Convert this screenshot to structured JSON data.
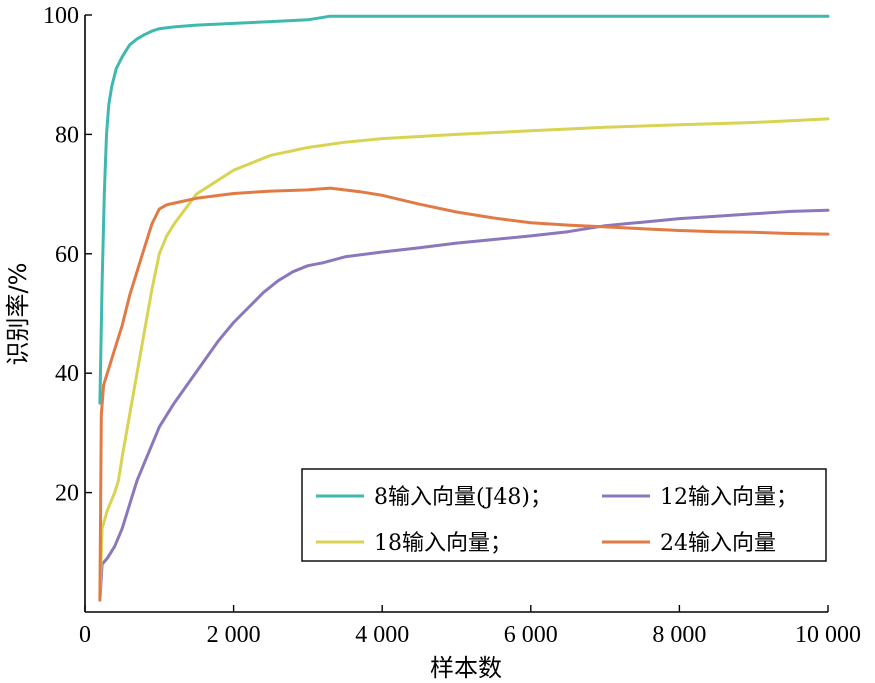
{
  "chart_data": {
    "type": "line",
    "title": "",
    "xlabel": "样本数",
    "ylabel": "识别率/%",
    "xlim": [
      0,
      10000
    ],
    "ylim": [
      0,
      100
    ],
    "xticks": [
      0,
      2000,
      4000,
      6000,
      8000,
      10000
    ],
    "xtick_labels": [
      "0",
      "2 000",
      "4 000",
      "6 000",
      "8 000",
      "10 000"
    ],
    "yticks": [
      20,
      40,
      60,
      80,
      100
    ],
    "ytick_labels": [
      "20",
      "40",
      "60",
      "80",
      "100"
    ],
    "grid": false,
    "legend_position": "bottom-right",
    "series": [
      {
        "name": "8输入向量(J48)；",
        "color": "#3fb8b0",
        "x": [
          200,
          230,
          260,
          290,
          320,
          360,
          420,
          500,
          600,
          700,
          800,
          900,
          1000,
          1200,
          1500,
          2000,
          2500,
          3000,
          3300,
          4000,
          5000,
          6000,
          7000,
          8000,
          9000,
          10000
        ],
        "y": [
          35,
          55,
          70,
          80,
          85,
          88,
          91,
          93,
          95,
          96,
          96.7,
          97.3,
          97.7,
          98,
          98.3,
          98.6,
          98.9,
          99.2,
          99.8,
          99.8,
          99.8,
          99.8,
          99.8,
          99.8,
          99.8,
          99.8
        ]
      },
      {
        "name": "12输入向量；",
        "color": "#8b77bb",
        "x": [
          200,
          230,
          300,
          400,
          500,
          600,
          700,
          800,
          900,
          1000,
          1200,
          1400,
          1600,
          1800,
          2000,
          2200,
          2400,
          2600,
          2800,
          3000,
          3200,
          3500,
          4000,
          4500,
          5000,
          5500,
          6000,
          6500,
          7000,
          7500,
          8000,
          8500,
          9000,
          9500,
          10000
        ],
        "y": [
          2,
          8,
          9,
          11,
          14,
          18,
          22,
          25,
          28,
          31,
          35,
          38.5,
          42,
          45.5,
          48.5,
          51,
          53.5,
          55.5,
          57,
          58,
          58.5,
          59.5,
          60.3,
          61,
          61.8,
          62.4,
          63,
          63.7,
          64.7,
          65.3,
          65.9,
          66.3,
          66.7,
          67.1,
          67.3
        ]
      },
      {
        "name": "18输入向量；",
        "color": "#d9d353",
        "x": [
          200,
          230,
          300,
          400,
          450,
          500,
          600,
          700,
          800,
          900,
          1000,
          1100,
          1200,
          1500,
          2000,
          2500,
          3000,
          3500,
          4000,
          5000,
          6000,
          7000,
          8000,
          9000,
          10000
        ],
        "y": [
          2,
          14,
          17,
          20,
          22,
          26,
          33,
          40,
          47,
          54,
          60,
          63,
          65,
          70,
          74,
          76.5,
          77.8,
          78.7,
          79.3,
          80,
          80.6,
          81.2,
          81.6,
          82,
          82.6
        ]
      },
      {
        "name": "24输入向量",
        "color": "#e07b45",
        "x": [
          200,
          220,
          250,
          300,
          350,
          400,
          500,
          600,
          700,
          800,
          900,
          1000,
          1100,
          1200,
          1500,
          2000,
          2500,
          3000,
          3300,
          3700,
          4000,
          4500,
          5000,
          5500,
          6000,
          6500,
          7000,
          7500,
          8000,
          8500,
          9000,
          9500,
          10000
        ],
        "y": [
          2,
          33,
          38,
          40,
          42,
          44,
          48,
          53,
          57,
          61,
          65,
          67.5,
          68.2,
          68.5,
          69.3,
          70.1,
          70.5,
          70.7,
          71,
          70.4,
          69.8,
          68.3,
          67,
          66,
          65.2,
          64.8,
          64.5,
          64.2,
          63.9,
          63.7,
          63.6,
          63.4,
          63.3
        ]
      }
    ]
  }
}
